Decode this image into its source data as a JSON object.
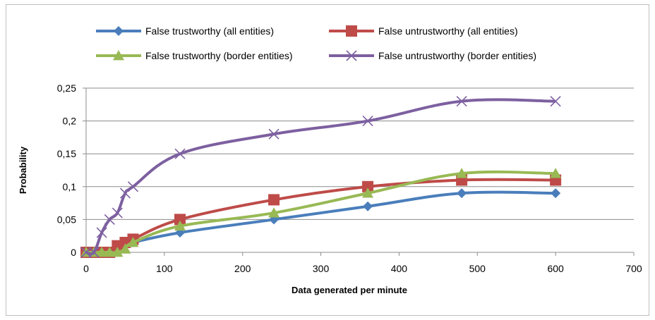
{
  "chart_data": {
    "type": "line",
    "title": "",
    "xlabel": "Data generated per minute",
    "ylabel": "Probability",
    "xlim": [
      0,
      700
    ],
    "ylim": [
      0,
      0.25
    ],
    "x_ticks": [
      0,
      100,
      200,
      300,
      400,
      500,
      600,
      700
    ],
    "x_tick_labels": [
      "0",
      "100",
      "200",
      "300",
      "400",
      "500",
      "600",
      "700"
    ],
    "y_ticks": [
      0,
      0.05,
      0.1,
      0.15,
      0.2,
      0.25
    ],
    "y_tick_labels": [
      "0",
      "0,05",
      "0,1",
      "0,15",
      "0,2",
      "0,25"
    ],
    "grid": "horizontal",
    "legend_position": "top",
    "series": [
      {
        "name": "False trustworthy (all entities)",
        "color": "#4a7ebb",
        "marker": "diamond",
        "x": [
          0,
          10,
          20,
          30,
          40,
          50,
          60,
          120,
          240,
          360,
          480,
          600
        ],
        "y": [
          0,
          0,
          0,
          0,
          0.005,
          0.01,
          0.015,
          0.03,
          0.05,
          0.07,
          0.09,
          0.09
        ]
      },
      {
        "name": "False untrustworthy (all entities)",
        "color": "#be4b48",
        "marker": "square",
        "x": [
          0,
          10,
          20,
          30,
          40,
          50,
          60,
          120,
          240,
          360,
          480,
          600
        ],
        "y": [
          0,
          0,
          0,
          0,
          0.01,
          0.015,
          0.02,
          0.05,
          0.08,
          0.1,
          0.11,
          0.11
        ]
      },
      {
        "name": "False trustworthy (border entities)",
        "color": "#98b954",
        "marker": "triangle",
        "x": [
          0,
          10,
          20,
          30,
          40,
          50,
          60,
          120,
          240,
          360,
          480,
          600
        ],
        "y": [
          0,
          0,
          0,
          0,
          0,
          0.005,
          0.015,
          0.04,
          0.06,
          0.09,
          0.12,
          0.12
        ]
      },
      {
        "name": "False untrustworthy (border entities)",
        "color": "#7d60a0",
        "marker": "x",
        "x": [
          0,
          10,
          20,
          30,
          40,
          50,
          60,
          120,
          240,
          360,
          480,
          600
        ],
        "y": [
          0,
          0,
          0.03,
          0.05,
          0.06,
          0.09,
          0.1,
          0.15,
          0.18,
          0.2,
          0.23,
          0.23
        ]
      }
    ]
  }
}
